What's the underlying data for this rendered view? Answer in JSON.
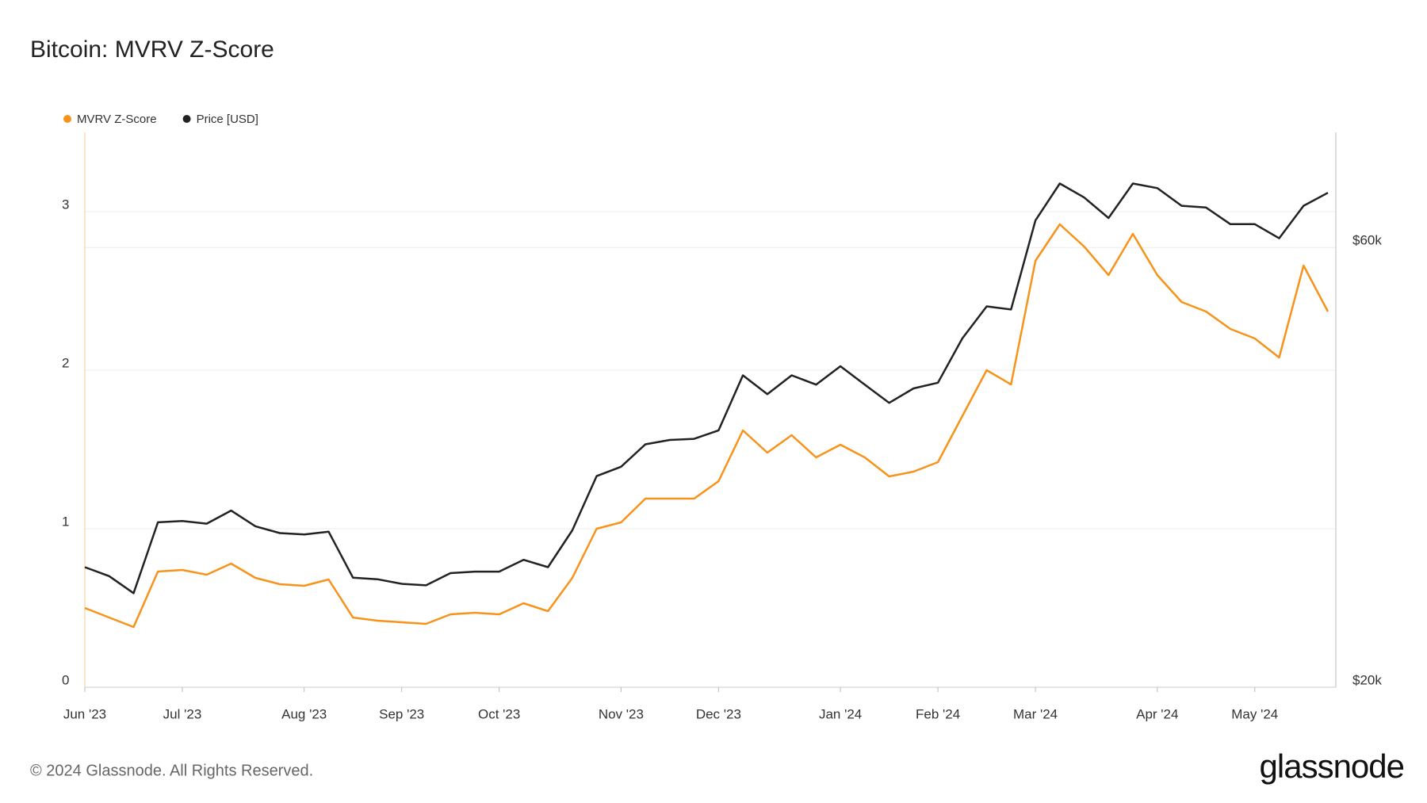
{
  "chart_data": {
    "type": "line",
    "title": "Bitcoin: MVRV Z-Score",
    "categories": [
      "Jun '23",
      null,
      null,
      null,
      "Jul '23",
      null,
      null,
      null,
      null,
      "Aug '23",
      null,
      null,
      null,
      "Sep '23",
      null,
      null,
      null,
      "Oct '23",
      null,
      null,
      null,
      null,
      "Nov '23",
      null,
      null,
      null,
      "Dec '23",
      null,
      null,
      null,
      null,
      "Jan '24",
      null,
      null,
      null,
      "Feb '24",
      null,
      null,
      null,
      "Mar '24",
      null,
      null,
      null,
      null,
      "Apr '24",
      null,
      null,
      null,
      "May '24",
      null,
      null,
      null
    ],
    "series": [
      {
        "name": "MVRV Z-Score",
        "color": "#f7931a",
        "axis": "y",
        "values": [
          0.5,
          0.44,
          0.38,
          0.73,
          0.74,
          0.71,
          0.78,
          0.69,
          0.65,
          0.64,
          0.68,
          0.44,
          0.42,
          0.41,
          0.4,
          0.46,
          0.47,
          0.46,
          0.53,
          0.48,
          0.69,
          1.0,
          1.04,
          1.19,
          1.19,
          1.19,
          1.3,
          1.62,
          1.48,
          1.59,
          1.45,
          1.53,
          1.45,
          1.33,
          1.36,
          1.42,
          1.71,
          2.0,
          1.91,
          2.69,
          2.92,
          2.78,
          2.6,
          2.86,
          2.6,
          2.43,
          2.37,
          2.26,
          2.2,
          2.08,
          2.66,
          2.37
        ]
      },
      {
        "name": "Price [USD]",
        "color": "#222222",
        "axis": "y2",
        "values": [
          27000,
          26400,
          25300,
          30200,
          30300,
          30100,
          31100,
          29900,
          29400,
          29300,
          29500,
          26300,
          26200,
          25900,
          25800,
          26600,
          26700,
          26700,
          27500,
          27000,
          29600,
          33900,
          34700,
          36700,
          37100,
          37200,
          38000,
          43600,
          41600,
          43600,
          42600,
          44600,
          42600,
          40700,
          42200,
          42800,
          47800,
          51800,
          51400,
          64200,
          70400,
          68000,
          64600,
          70400,
          69600,
          66600,
          66300,
          63600,
          63600,
          61400,
          66600,
          68800
        ]
      }
    ],
    "ylim": [
      0,
      3.5
    ],
    "yticks": [
      0,
      1,
      2,
      3
    ],
    "y2lim": [
      20000,
      80000
    ],
    "y2scale": "log",
    "y2ticks": [
      {
        "value": 20000,
        "label": "$20k"
      },
      {
        "value": 60000,
        "label": "$60k"
      }
    ],
    "grid": true,
    "legend": "top-left"
  },
  "footer": {
    "copyright": "© 2024 Glassnode. All Rights Reserved.",
    "brand": "glassnode"
  }
}
